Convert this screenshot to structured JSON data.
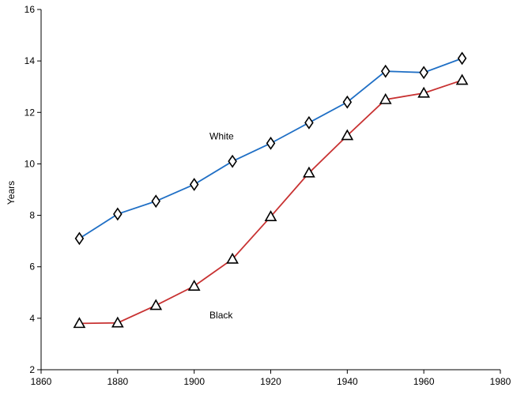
{
  "chart_data": {
    "type": "line",
    "title": "",
    "xlabel": "",
    "ylabel": "Years",
    "xlim": [
      1860,
      1980
    ],
    "ylim": [
      2,
      16
    ],
    "x_ticks": [
      1860,
      1880,
      1900,
      1920,
      1940,
      1960,
      1980
    ],
    "y_ticks": [
      2,
      4,
      6,
      8,
      10,
      12,
      14,
      16
    ],
    "grid": false,
    "x": [
      1870,
      1880,
      1890,
      1900,
      1910,
      1920,
      1930,
      1940,
      1950,
      1960,
      1970
    ],
    "series": [
      {
        "name": "White",
        "marker": "diamond",
        "color": "#1f6fc5",
        "values": [
          7.1,
          8.05,
          8.55,
          9.2,
          10.1,
          10.8,
          11.6,
          12.4,
          13.6,
          13.55,
          14.1
        ],
        "label_at": [
          1904,
          10.95
        ]
      },
      {
        "name": "Black",
        "marker": "triangle",
        "color": "#c83232",
        "values": [
          3.8,
          3.82,
          4.5,
          5.25,
          6.3,
          7.95,
          9.65,
          11.1,
          12.5,
          12.75,
          13.25
        ],
        "label_at": [
          1904,
          4.0
        ]
      }
    ]
  }
}
